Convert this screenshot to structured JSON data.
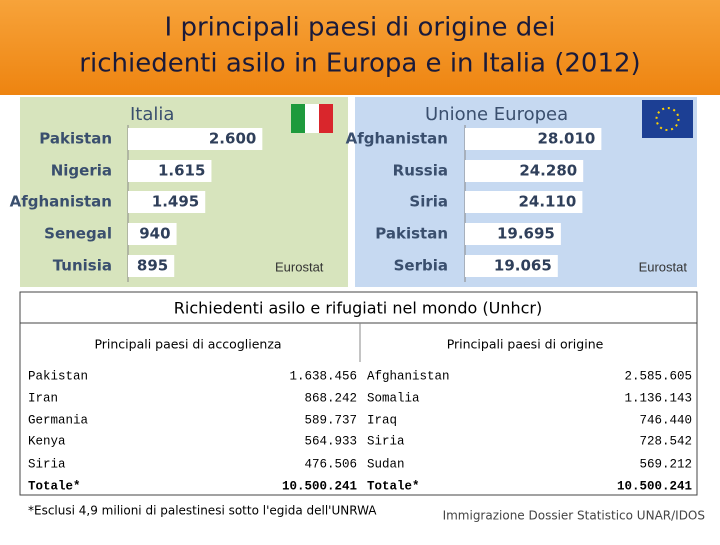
{
  "title": "I principali paesi di origine dei richiedenti asilo in Europa e in Italia (2012)",
  "chart_data": [
    {
      "type": "hbar",
      "title": "Italia",
      "source": "Eurostat",
      "categories": [
        "Pakistan",
        "Nigeria",
        "Afghanistan",
        "Senegal",
        "Tunisia"
      ],
      "values": [
        2600,
        1615,
        1495,
        940,
        895
      ],
      "value_labels": [
        "2.600",
        "1.615",
        "1.495",
        "940",
        "895"
      ],
      "color": "#ffffff",
      "xlim": [
        0,
        4200
      ]
    },
    {
      "type": "hbar",
      "title": "Unione Europea",
      "source": "Eurostat",
      "categories": [
        "Afghanistan",
        "Russia",
        "Siria",
        "Pakistan",
        "Serbia"
      ],
      "values": [
        28010,
        24280,
        24110,
        19695,
        19065
      ],
      "value_labels": [
        "28.010",
        "24.280",
        "24.110",
        "19.695",
        "19.065"
      ],
      "color": "#ffffff",
      "xlim": [
        0,
        38000
      ]
    }
  ],
  "table": {
    "title": "Richiedenti asilo e rifugiati nel mondo (Unhcr)",
    "columns": [
      "Principali paesi di accoglienza",
      "Principali paesi di origine"
    ],
    "rows": [
      [
        "Pakistan",
        "1.638.456",
        "Afghanistan",
        "2.585.605"
      ],
      [
        "Iran",
        "868.242",
        "Somalia",
        "1.136.143"
      ],
      [
        "Germania",
        "589.737",
        "Iraq",
        "746.440"
      ],
      [
        "Kenya",
        "564.933",
        "Siria",
        "728.542"
      ],
      [
        "Siria",
        "476.506",
        "Sudan",
        "569.212"
      ],
      [
        "Totale*",
        "10.500.241",
        "Totale*",
        "10.500.241"
      ]
    ]
  },
  "footnote": "*Esclusi 4,9 milioni di palestinesi sotto l'egida dell'UNRWA",
  "source": "Immigrazione Dossier Statistico UNAR/IDOS"
}
